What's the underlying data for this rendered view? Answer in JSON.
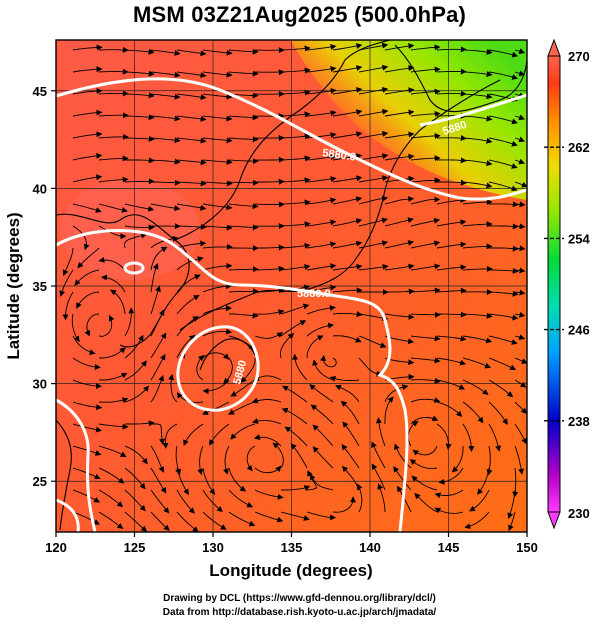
{
  "title": "MSM 03Z21Aug2025 (500.0hPa)",
  "x_axis": {
    "label": "Longitude (degrees)",
    "ticks": [
      "120",
      "125",
      "130",
      "135",
      "140",
      "145",
      "150"
    ],
    "range": [
      120,
      150
    ]
  },
  "y_axis": {
    "label": "Latitude  (degrees)",
    "ticks": [
      "25",
      "30",
      "35",
      "40",
      "45"
    ],
    "range": [
      22.4,
      47.6
    ]
  },
  "colorbar": {
    "min_label": "230",
    "max_label": "270",
    "tick_labels": [
      "238",
      "246",
      "254",
      "262"
    ],
    "range": [
      230,
      270
    ],
    "colors": [
      "#ff3cff",
      "#0000c8",
      "#00c8ff",
      "#00dc64",
      "#64e600",
      "#e6dc00",
      "#ff7800",
      "#ff3c14",
      "#ff6450"
    ]
  },
  "contours": {
    "color": "#ffffff",
    "labels": [
      "5880",
      "5880.0",
      "5880.0",
      "5880"
    ]
  },
  "credits": {
    "line1": "Drawing by DCL (https://www.gfd-dennou.org/library/dcl/)",
    "line2": "Data from http://database.rish.kyoto-u.ac.jp/arch/jmadata/"
  }
}
